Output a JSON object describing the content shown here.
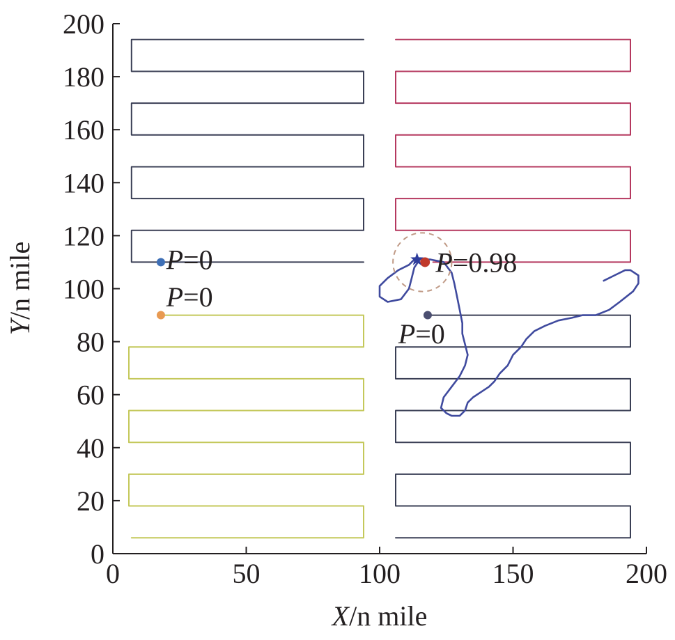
{
  "chart_data": {
    "type": "line",
    "title": "",
    "xlabel": {
      "italic": "X",
      "rest": "/n mile"
    },
    "ylabel": {
      "italic": "Y",
      "rest": "/n mile"
    },
    "xlim": [
      0,
      200
    ],
    "ylim": [
      0,
      200
    ],
    "xticks": [
      "0",
      "50",
      "100",
      "150",
      "200"
    ],
    "yticks": [
      "0",
      "20",
      "40",
      "60",
      "80",
      "100",
      "120",
      "140",
      "160",
      "180",
      "200"
    ],
    "grid": false,
    "series": [
      {
        "color": "#3a3f55",
        "points": [
          [
            94,
            194
          ],
          [
            7,
            194
          ],
          [
            7,
            182
          ],
          [
            94,
            182
          ],
          [
            94,
            170
          ],
          [
            7,
            170
          ],
          [
            7,
            158
          ],
          [
            94,
            158
          ],
          [
            94,
            146
          ],
          [
            7,
            146
          ],
          [
            7,
            134
          ],
          [
            94,
            134
          ],
          [
            94,
            122
          ],
          [
            7,
            122
          ],
          [
            7,
            110
          ],
          [
            94,
            110
          ]
        ]
      },
      {
        "color": "#b5385f",
        "points": [
          [
            106,
            194
          ],
          [
            194,
            194
          ],
          [
            194,
            182
          ],
          [
            106,
            182
          ],
          [
            106,
            170
          ],
          [
            194,
            170
          ],
          [
            194,
            158
          ],
          [
            106,
            158
          ],
          [
            106,
            146
          ],
          [
            194,
            146
          ],
          [
            194,
            134
          ],
          [
            106,
            134
          ],
          [
            106,
            122
          ],
          [
            194,
            122
          ],
          [
            194,
            110
          ],
          [
            120,
            110
          ]
        ]
      },
      {
        "color": "#c4c85a",
        "points": [
          [
            17,
            90
          ],
          [
            94,
            90
          ],
          [
            94,
            78
          ],
          [
            6,
            78
          ],
          [
            6,
            66
          ],
          [
            94,
            66
          ],
          [
            94,
            54
          ],
          [
            6,
            54
          ],
          [
            6,
            42
          ],
          [
            94,
            42
          ],
          [
            94,
            30
          ],
          [
            6,
            30
          ],
          [
            6,
            18
          ],
          [
            94,
            18
          ],
          [
            94,
            6
          ],
          [
            7,
            6
          ]
        ]
      },
      {
        "color": "#3a3f55",
        "points": [
          [
            117,
            90
          ],
          [
            194,
            90
          ],
          [
            194,
            78
          ],
          [
            106,
            78
          ],
          [
            106,
            66
          ],
          [
            194,
            66
          ],
          [
            194,
            54
          ],
          [
            106,
            54
          ],
          [
            106,
            42
          ],
          [
            194,
            42
          ],
          [
            194,
            30
          ],
          [
            106,
            30
          ],
          [
            106,
            18
          ],
          [
            194,
            18
          ],
          [
            194,
            6
          ],
          [
            106,
            6
          ]
        ]
      },
      {
        "color": "#3f4a9e",
        "points": [
          [
            184,
            103
          ],
          [
            188,
            105
          ],
          [
            192,
            107
          ],
          [
            194,
            107
          ],
          [
            197,
            105
          ],
          [
            197,
            102
          ],
          [
            195,
            99
          ],
          [
            190,
            95
          ],
          [
            186,
            92
          ],
          [
            181,
            90
          ],
          [
            176,
            90
          ],
          [
            172,
            89
          ],
          [
            167,
            88
          ],
          [
            162,
            86
          ],
          [
            158,
            84
          ],
          [
            155,
            81
          ],
          [
            153,
            78
          ],
          [
            150,
            75
          ],
          [
            148,
            71
          ],
          [
            145,
            68
          ],
          [
            143,
            65
          ],
          [
            141,
            63
          ],
          [
            138,
            61
          ],
          [
            135,
            59
          ],
          [
            133,
            57
          ],
          [
            132,
            54
          ],
          [
            130,
            52
          ],
          [
            127,
            52
          ],
          [
            125,
            53
          ],
          [
            123,
            55
          ],
          [
            124,
            59
          ],
          [
            127,
            63
          ],
          [
            130,
            67
          ],
          [
            132,
            71
          ],
          [
            133,
            75
          ],
          [
            132,
            79
          ],
          [
            131,
            83
          ],
          [
            131,
            87
          ],
          [
            130,
            92
          ],
          [
            129,
            97
          ],
          [
            128,
            102
          ],
          [
            127,
            106
          ],
          [
            124,
            110
          ],
          [
            119,
            111
          ],
          [
            115,
            111
          ],
          [
            113,
            108
          ],
          [
            112,
            104
          ],
          [
            111,
            100
          ],
          [
            108,
            96
          ],
          [
            103,
            95
          ],
          [
            100,
            97
          ],
          [
            100,
            101
          ],
          [
            103,
            104
          ],
          [
            107,
            107
          ],
          [
            111,
            109
          ],
          [
            113,
            111
          ]
        ]
      }
    ],
    "circle": {
      "center": [
        116,
        110
      ],
      "radius": 11,
      "color": "#c09a86"
    },
    "markers": [
      {
        "name": "start-blue",
        "x": 18,
        "y": 110,
        "color": "#3e6fb6",
        "label": "=0",
        "label_x": 20,
        "label_y": 111
      },
      {
        "name": "start-orange",
        "x": 18,
        "y": 90,
        "color": "#e89a52",
        "label": "=0",
        "label_x": 20,
        "label_y": 97
      },
      {
        "name": "start-purple",
        "x": 118,
        "y": 90,
        "color": "#4b4e70",
        "label": "=0",
        "label_x": 107,
        "label_y": 83
      },
      {
        "name": "target-red",
        "x": 117,
        "y": 110,
        "color": "#c0392b",
        "label": "=0.98",
        "label_x": 121,
        "label_y": 110
      }
    ],
    "star": {
      "x": 114,
      "y": 111,
      "color": "#2e3d9c"
    },
    "annotation_prefix": "P"
  }
}
